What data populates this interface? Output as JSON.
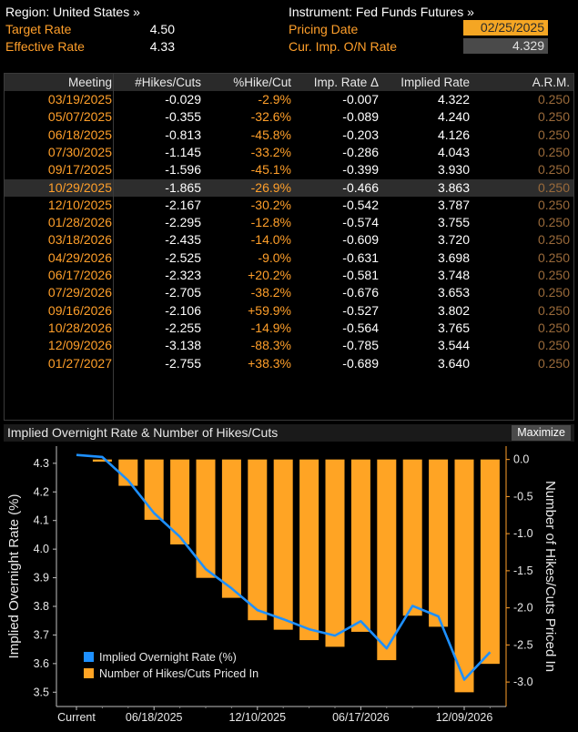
{
  "header": {
    "region_label": "Region: United States »",
    "instrument_label": "Instrument: Fed Funds Futures »",
    "target_rate_label": "Target Rate",
    "target_rate_value": "4.50",
    "effective_rate_label": "Effective Rate",
    "effective_rate_value": "4.33",
    "pricing_date_label": "Pricing Date",
    "pricing_date_value": "02/25/2025",
    "cur_imp_label": "Cur. Imp. O/N Rate",
    "cur_imp_value": "4.329"
  },
  "table": {
    "columns": [
      "Meeting",
      "#Hikes/Cuts",
      "%Hike/Cut",
      "Imp. Rate Δ",
      "Implied Rate",
      "A.R.M."
    ],
    "selected_row": 5,
    "rows": [
      [
        "03/19/2025",
        "-0.029",
        "-2.9%",
        "-0.007",
        "4.322",
        "0.250"
      ],
      [
        "05/07/2025",
        "-0.355",
        "-32.6%",
        "-0.089",
        "4.240",
        "0.250"
      ],
      [
        "06/18/2025",
        "-0.813",
        "-45.8%",
        "-0.203",
        "4.126",
        "0.250"
      ],
      [
        "07/30/2025",
        "-1.145",
        "-33.2%",
        "-0.286",
        "4.043",
        "0.250"
      ],
      [
        "09/17/2025",
        "-1.596",
        "-45.1%",
        "-0.399",
        "3.930",
        "0.250"
      ],
      [
        "10/29/2025",
        "-1.865",
        "-26.9%",
        "-0.466",
        "3.863",
        "0.250"
      ],
      [
        "12/10/2025",
        "-2.167",
        "-30.2%",
        "-0.542",
        "3.787",
        "0.250"
      ],
      [
        "01/28/2026",
        "-2.295",
        "-12.8%",
        "-0.574",
        "3.755",
        "0.250"
      ],
      [
        "03/18/2026",
        "-2.435",
        "-14.0%",
        "-0.609",
        "3.720",
        "0.250"
      ],
      [
        "04/29/2026",
        "-2.525",
        "-9.0%",
        "-0.631",
        "3.698",
        "0.250"
      ],
      [
        "06/17/2026",
        "-2.323",
        "+20.2%",
        "-0.581",
        "3.748",
        "0.250"
      ],
      [
        "07/29/2026",
        "-2.705",
        "-38.2%",
        "-0.676",
        "3.653",
        "0.250"
      ],
      [
        "09/16/2026",
        "-2.106",
        "+59.9%",
        "-0.527",
        "3.802",
        "0.250"
      ],
      [
        "10/28/2026",
        "-2.255",
        "-14.9%",
        "-0.564",
        "3.765",
        "0.250"
      ],
      [
        "12/09/2026",
        "-3.138",
        "-88.3%",
        "-0.785",
        "3.544",
        "0.250"
      ],
      [
        "01/27/2027",
        "-2.755",
        "+38.3%",
        "-0.689",
        "3.640",
        "0.250"
      ]
    ]
  },
  "chart_panel": {
    "title": "Implied Overnight Rate & Number of Hikes/Cuts",
    "maximize_label": "Maximize"
  },
  "chart_data": {
    "type": "bar",
    "categories": [
      "Current",
      "03/19/2025",
      "05/07/2025",
      "06/18/2025",
      "07/30/2025",
      "09/17/2025",
      "10/29/2025",
      "12/10/2025",
      "01/28/2026",
      "03/18/2026",
      "04/29/2026",
      "06/17/2026",
      "07/29/2026",
      "09/16/2026",
      "10/28/2026",
      "12/09/2026",
      "01/27/2027"
    ],
    "x_tick_labels": [
      {
        "index": 0,
        "label": "Current"
      },
      {
        "index": 3,
        "label": "06/18/2025"
      },
      {
        "index": 7,
        "label": "12/10/2025"
      },
      {
        "index": 11,
        "label": "06/17/2026"
      },
      {
        "index": 15,
        "label": "12/09/2026"
      }
    ],
    "series": [
      {
        "name": "Implied Overnight Rate (%)",
        "type": "line",
        "axis": "left",
        "color": "#1e90ff",
        "values": [
          4.329,
          4.322,
          4.24,
          4.126,
          4.043,
          3.93,
          3.863,
          3.787,
          3.755,
          3.72,
          3.698,
          3.748,
          3.653,
          3.802,
          3.765,
          3.544,
          3.64
        ]
      },
      {
        "name": "Number of Hikes/Cuts Priced In",
        "type": "bar",
        "axis": "right",
        "color": "#ffa424",
        "values": [
          null,
          -0.029,
          -0.355,
          -0.813,
          -1.145,
          -1.596,
          -1.865,
          -2.167,
          -2.295,
          -2.435,
          -2.525,
          -2.323,
          -2.705,
          -2.106,
          -2.255,
          -3.138,
          -2.755
        ]
      }
    ],
    "ylabel": "Implied Overnight Rate (%)",
    "y2label": "Number of Hikes/Cuts Priced In",
    "ylim": [
      3.45,
      4.36
    ],
    "y2lim": [
      -3.33,
      0.18
    ],
    "yticks": [
      "4.3",
      "4.2",
      "4.1",
      "4.0",
      "3.9",
      "3.8",
      "3.7",
      "3.6",
      "3.5"
    ],
    "y2ticks": [
      "0.0",
      "-0.5",
      "-1.0",
      "-1.5",
      "-2.0",
      "-2.5",
      "-3.0"
    ],
    "legend_position": "bottom-left",
    "grid": false
  }
}
